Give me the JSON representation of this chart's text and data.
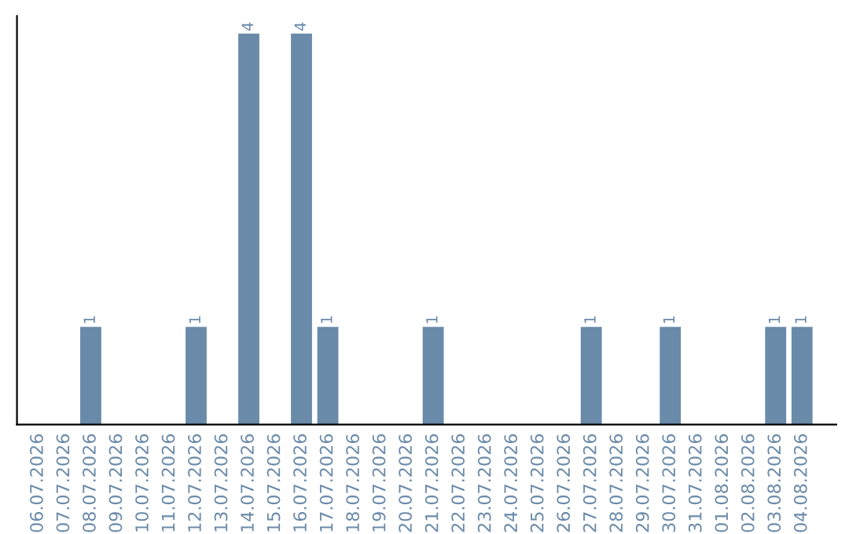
{
  "chart_data": {
    "type": "bar",
    "categories": [
      "06.07.2026",
      "07.07.2026",
      "08.07.2026",
      "09.07.2026",
      "10.07.2026",
      "11.07.2026",
      "12.07.2026",
      "13.07.2026",
      "14.07.2026",
      "15.07.2026",
      "16.07.2026",
      "17.07.2026",
      "18.07.2026",
      "19.07.2026",
      "20.07.2026",
      "21.07.2026",
      "22.07.2026",
      "23.07.2026",
      "24.07.2026",
      "25.07.2026",
      "26.07.2026",
      "27.07.2026",
      "28.07.2026",
      "29.07.2026",
      "30.07.2026",
      "31.07.2026",
      "01.08.2026",
      "02.08.2026",
      "03.08.2026",
      "04.08.2026"
    ],
    "values": [
      0,
      0,
      1,
      0,
      0,
      0,
      1,
      0,
      4,
      0,
      4,
      1,
      0,
      0,
      0,
      1,
      0,
      0,
      0,
      0,
      0,
      1,
      0,
      0,
      1,
      0,
      0,
      0,
      1,
      1
    ],
    "value_labels": [
      null,
      null,
      "1",
      null,
      null,
      null,
      "1",
      null,
      "4",
      null,
      "4",
      "1",
      null,
      null,
      null,
      "1",
      null,
      null,
      null,
      null,
      null,
      "1",
      null,
      null,
      "1",
      null,
      null,
      null,
      "1",
      "1"
    ],
    "color": "#6a8aaa",
    "tick_labels": "x",
    "grid": false,
    "legend": false
  }
}
